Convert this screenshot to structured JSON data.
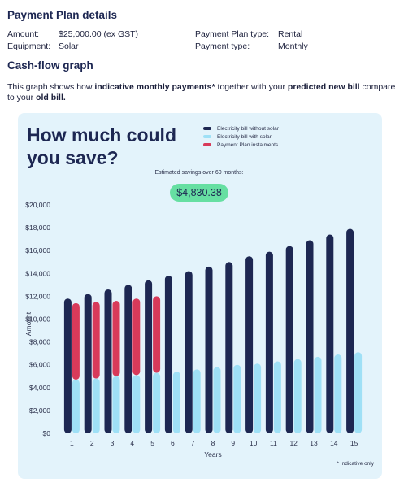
{
  "details": {
    "title": "Payment Plan details",
    "amount_label": "Amount:",
    "amount_value": "$25,000.00 (ex GST)",
    "equipment_label": "Equipment:",
    "equipment_value": "Solar",
    "plan_type_label": "Payment Plan type:",
    "plan_type_value": "Rental",
    "payment_type_label": "Payment type:",
    "payment_type_value": "Monthly"
  },
  "cashflow": {
    "title": "Cash-flow graph",
    "intro_1": "This graph shows how ",
    "intro_b1": "indicative monthly payments*",
    "intro_2": " together with your ",
    "intro_b2": "predicted new bill",
    "intro_3": " compare to your ",
    "intro_b3": "old bill."
  },
  "card": {
    "headline": "How much could you save?",
    "savings_label": "Estimated savings over 60 months:",
    "savings_value": "$4,830.38",
    "footnote": "* Indicative only"
  },
  "colors": {
    "without_solar": "#1d2752",
    "with_solar": "#9fe0f6",
    "instalments": "#d83a5a"
  },
  "chart_data": {
    "type": "bar",
    "xlabel": "Years",
    "ylabel": "Amount",
    "ylim": [
      0,
      20000
    ],
    "y_ticks": [
      "$0",
      "$2,000",
      "$4,000",
      "$6,000",
      "$8,000",
      "$10,000",
      "$12,000",
      "$14,000",
      "$16,000",
      "$18,000",
      "$20,000"
    ],
    "categories": [
      "1",
      "2",
      "3",
      "4",
      "5",
      "6",
      "7",
      "8",
      "9",
      "10",
      "11",
      "12",
      "13",
      "14",
      "15"
    ],
    "legend_position": "top-right",
    "series": [
      {
        "name": "Electricity bill without solar",
        "values": [
          11800,
          12200,
          12600,
          13000,
          13400,
          13800,
          14200,
          14600,
          15000,
          15500,
          15900,
          16400,
          16900,
          17400,
          17900
        ]
      },
      {
        "name": "Electricity bill with solar",
        "values": [
          4700,
          4800,
          5000,
          5100,
          5300,
          5400,
          5600,
          5800,
          6000,
          6100,
          6300,
          6500,
          6700,
          6900,
          7100
        ]
      },
      {
        "name": "Payment Plan instalments",
        "type": "floating-range",
        "ranges": [
          [
            4700,
            11400
          ],
          [
            4800,
            11500
          ],
          [
            5000,
            11600
          ],
          [
            5100,
            11800
          ],
          [
            5300,
            12000
          ],
          null,
          null,
          null,
          null,
          null,
          null,
          null,
          null,
          null,
          null
        ]
      }
    ]
  }
}
